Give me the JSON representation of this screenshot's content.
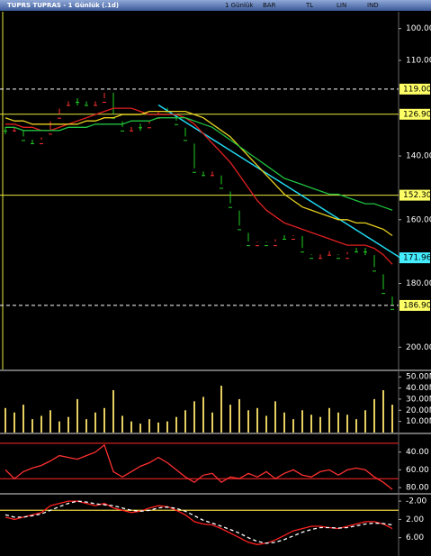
{
  "header": {
    "title": "TUPRS TUPRAS - 1 Günlük (.1d)",
    "toolbar": [
      "1 Günlük",
      "BAR",
      "TL",
      "LIN",
      "IND"
    ]
  },
  "chart_data": [
    {
      "type": "candlestick",
      "closes": [
        132,
        131,
        135,
        136,
        133,
        128,
        124,
        123,
        123,
        124,
        123,
        119,
        128,
        132,
        131,
        131,
        128,
        125,
        126,
        130,
        135,
        145,
        146,
        145,
        150,
        156,
        163,
        168,
        166,
        168,
        165,
        166,
        164,
        170,
        172,
        171,
        170,
        172,
        169,
        170,
        170,
        176,
        183,
        188
      ],
      "up_color": "#22d022",
      "down_color": "#ff3030",
      "series": [
        {
          "color": "#e02020",
          "values": [
            130,
            130,
            131,
            131,
            132,
            132,
            131,
            130,
            129,
            128,
            127,
            126,
            125,
            125,
            125,
            126,
            127,
            127,
            127,
            127,
            128,
            130,
            133,
            136,
            139,
            142,
            146,
            150,
            154,
            157,
            159,
            161,
            162,
            163,
            164,
            165,
            166,
            167,
            168,
            168,
            168,
            169,
            171,
            174
          ]
        },
        {
          "color": "#e8d020",
          "values": [
            128,
            129,
            129,
            130,
            130,
            130,
            130,
            130,
            130,
            129,
            129,
            128,
            128,
            127,
            127,
            127,
            126,
            126,
            126,
            126,
            126,
            127,
            128,
            130,
            132,
            134,
            137,
            140,
            143,
            146,
            149,
            152,
            154,
            156,
            157,
            158,
            159,
            160,
            160,
            161,
            161,
            162,
            163,
            165
          ]
        },
        {
          "color": "#20c040",
          "values": [
            131,
            131,
            132,
            132,
            132,
            132,
            132,
            131,
            131,
            131,
            130,
            130,
            130,
            130,
            129,
            129,
            129,
            128,
            128,
            128,
            128,
            129,
            130,
            131,
            133,
            135,
            137,
            139,
            141,
            143,
            145,
            147,
            148,
            149,
            150,
            151,
            152,
            152,
            153,
            154,
            155,
            155,
            156,
            157
          ]
        }
      ],
      "ylim": [
        207,
        95
      ],
      "yticks": [
        {
          "value": 200,
          "label": "200.00"
        },
        {
          "value": 180,
          "label": "180.00"
        },
        {
          "value": 160,
          "label": "160.00"
        },
        {
          "value": 140,
          "label": "140.00"
        },
        {
          "value": 110,
          "label": "110.00"
        },
        {
          "value": 100,
          "label": "100.00"
        }
      ],
      "levels": [
        {
          "value": 186.9,
          "label": "186.90",
          "dashed": true,
          "color": "#ffffff"
        },
        {
          "value": 152.3,
          "label": "152.30",
          "dashed": false,
          "color": "#e8e840"
        },
        {
          "value": 126.9,
          "label": "126.90",
          "dashed": false,
          "color": "#e8e840"
        },
        {
          "value": 119,
          "label": "119.00",
          "dashed": true,
          "color": "#ffffff"
        }
      ],
      "trend_line": {
        "start": [
          17,
          124
        ],
        "end": [
          43.9,
          171.96
        ],
        "label": "171.96",
        "color": "#20d8f0"
      }
    },
    {
      "type": "bar",
      "color": "#e8d060",
      "values": [
        22,
        18,
        25,
        12,
        15,
        20,
        10,
        14,
        30,
        12,
        18,
        22,
        38,
        15,
        10,
        8,
        12,
        9,
        10,
        14,
        20,
        28,
        32,
        18,
        42,
        25,
        30,
        20,
        22,
        15,
        28,
        18,
        12,
        20,
        16,
        14,
        22,
        18,
        16,
        12,
        20,
        30,
        38,
        25
      ],
      "ylim": [
        0,
        55
      ],
      "yticks": [
        {
          "value": 50,
          "label": "50.00M"
        },
        {
          "value": 40,
          "label": "40.00M"
        },
        {
          "value": 30,
          "label": "30.00M"
        },
        {
          "value": 20,
          "label": "20.00M"
        },
        {
          "value": 10,
          "label": "10.00M"
        }
      ]
    },
    {
      "type": "line",
      "series": [
        {
          "color": "#ff3030",
          "values": [
            60,
            70,
            62,
            58,
            55,
            50,
            44,
            46,
            48,
            44,
            40,
            32,
            62,
            68,
            62,
            56,
            52,
            46,
            52,
            60,
            68,
            74,
            66,
            64,
            74,
            68,
            70,
            64,
            68,
            62,
            70,
            64,
            60,
            66,
            68,
            62,
            60,
            66,
            60,
            58,
            60,
            68,
            74,
            82
          ]
        }
      ],
      "ylim": [
        86,
        20
      ],
      "bands": [
        70,
        30
      ],
      "band_color": "#d02020",
      "yticks": [
        {
          "value": 80,
          "label": "80.00"
        },
        {
          "value": 60,
          "label": "60.00"
        },
        {
          "value": 40,
          "label": "40.00"
        }
      ]
    },
    {
      "type": "line",
      "series": [
        {
          "color": "#ff2020",
          "values": [
            1.5,
            2,
            1.5,
            1,
            0.5,
            -1,
            -1.5,
            -2,
            -2,
            -1.5,
            -1,
            -1.5,
            -0.5,
            0,
            0.5,
            0.2,
            -0.5,
            -1,
            -0.8,
            0,
            1,
            2.5,
            3,
            3.2,
            4,
            5,
            6,
            7,
            7.5,
            7.2,
            6.5,
            5.5,
            4.5,
            4,
            3.5,
            3.5,
            3.8,
            4,
            3.5,
            3,
            2.5,
            2.5,
            3,
            4
          ]
        },
        {
          "color": "#ffffff",
          "dashed": true,
          "values": [
            1,
            1.5,
            1.5,
            1.2,
            0.8,
            0,
            -0.8,
            -1.5,
            -2,
            -1.8,
            -1.4,
            -1.2,
            -1,
            -0.5,
            0,
            0.2,
            0,
            -0.5,
            -0.7,
            -0.4,
            0.2,
            1.2,
            2.2,
            2.8,
            3.5,
            4.2,
            5,
            6,
            6.8,
            7.2,
            7,
            6.4,
            5.6,
            4.8,
            4.2,
            3.8,
            3.8,
            3.9,
            3.8,
            3.4,
            3,
            2.8,
            2.9,
            3.2
          ]
        }
      ],
      "ylim": [
        10,
        -3.4
      ],
      "bands": [
        0
      ],
      "band_color": "#e8d040",
      "yticks": [
        {
          "value": 6,
          "label": "6.00"
        },
        {
          "value": 2,
          "label": "2.00"
        },
        {
          "value": -2,
          "label": "-2.00"
        }
      ]
    }
  ]
}
